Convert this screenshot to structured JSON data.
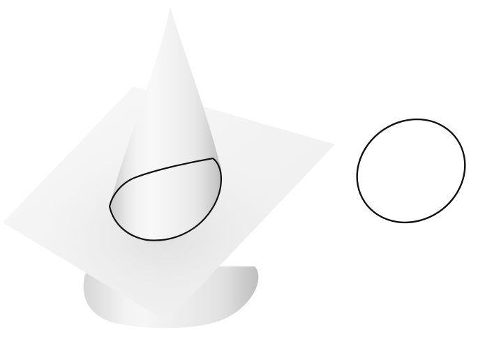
{
  "figure": {
    "objects": [
      {
        "name": "cone",
        "icon": "cone-shape"
      },
      {
        "name": "cutting-plane",
        "icon": "plane-shape"
      },
      {
        "name": "intersection-curve",
        "icon": "ellipse-curve"
      },
      {
        "name": "extracted-ellipse",
        "icon": "ellipse-curve"
      }
    ],
    "colors": {
      "background": "#ffffff",
      "surface_light": "#f7f7f7",
      "surface_mid": "#e7e7e7",
      "surface_shadow": "#d4d4d4",
      "curve": "#111111"
    }
  }
}
